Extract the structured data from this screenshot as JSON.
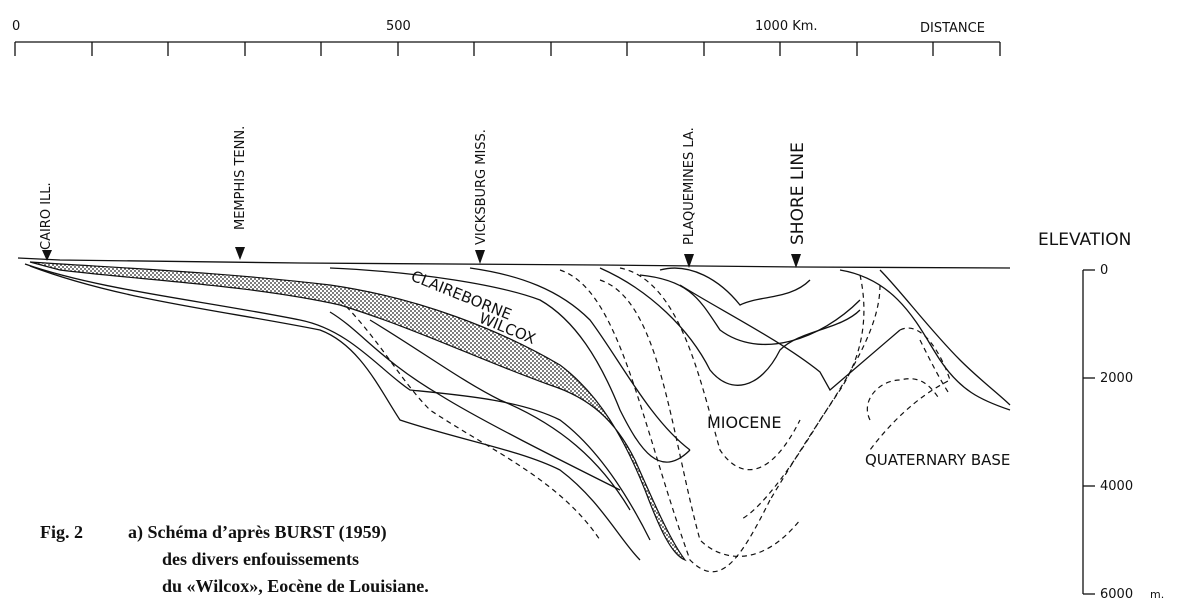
{
  "distance_axis": {
    "ticks": [
      "0",
      "500",
      "1000 Km."
    ],
    "title": "DISTANCE"
  },
  "elevation_axis": {
    "title": "ELEVATION",
    "ticks": [
      "0",
      "2000",
      "4000",
      "6000"
    ],
    "unit": "m."
  },
  "locations": [
    "CAIRO ILL.",
    "MEMPHIS TENN.",
    "VICKSBURG MISS.",
    "PLAQUEMINES LA.",
    "SHORE LINE"
  ],
  "formations": [
    "CLAIREBORNE",
    "WILCOX",
    "MIOCENE",
    "QUATERNARY BASE"
  ],
  "caption": {
    "figure": "Fig. 2",
    "lines": [
      "a) Schéma d’après BURST (1959)",
      "des divers enfouissements",
      "du «Wilcox», Eocène de Louisiane."
    ]
  }
}
